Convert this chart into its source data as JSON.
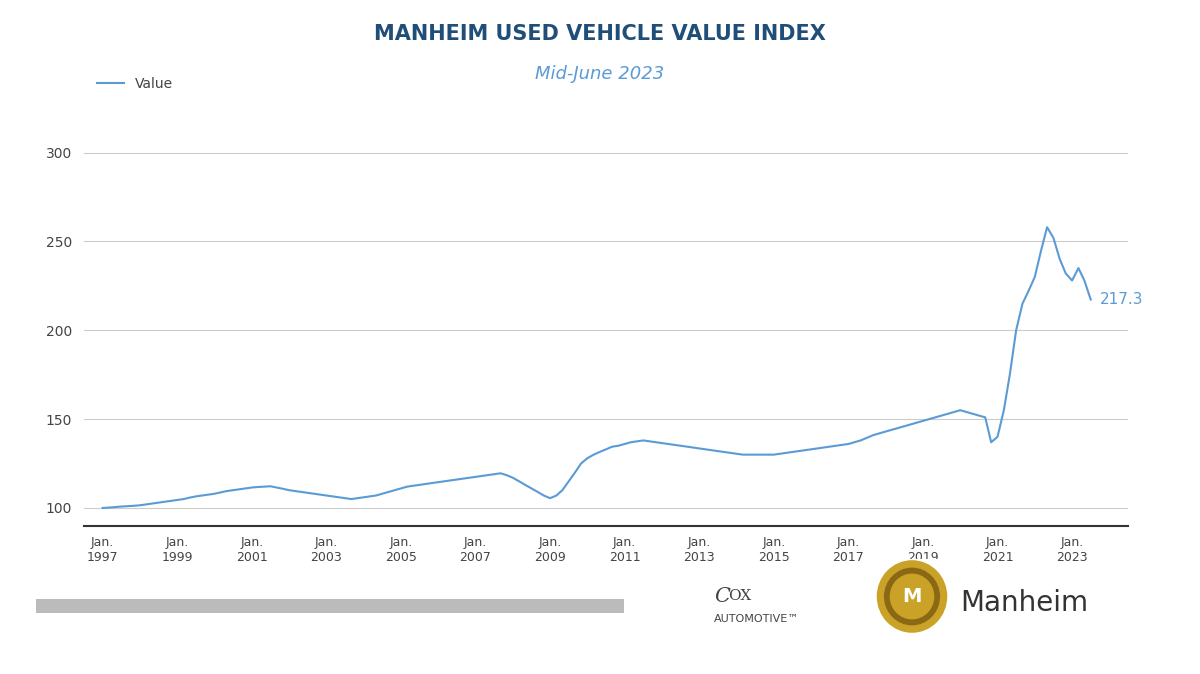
{
  "title": "MANHEIM USED VEHICLE VALUE INDEX",
  "subtitle": "Mid-June 2023",
  "line_color": "#5B9BD5",
  "background_color": "#FFFFFF",
  "end_label": "217.3",
  "end_label_color": "#5B9BD5",
  "legend_label": "Value",
  "ylim": [
    90,
    310
  ],
  "yticks": [
    100,
    150,
    200,
    250,
    300
  ],
  "title_color": "#1F4E79",
  "subtitle_color": "#5B9BD5",
  "data": [
    [
      1997.0,
      100.0
    ],
    [
      1997.17,
      100.2
    ],
    [
      1997.33,
      100.5
    ],
    [
      1997.5,
      100.8
    ],
    [
      1997.67,
      101.0
    ],
    [
      1997.83,
      101.2
    ],
    [
      1998.0,
      101.5
    ],
    [
      1998.17,
      102.0
    ],
    [
      1998.33,
      102.5
    ],
    [
      1998.5,
      103.0
    ],
    [
      1998.67,
      103.5
    ],
    [
      1998.83,
      104.0
    ],
    [
      1999.0,
      104.5
    ],
    [
      1999.17,
      105.0
    ],
    [
      1999.33,
      105.8
    ],
    [
      1999.5,
      106.5
    ],
    [
      1999.67,
      107.0
    ],
    [
      1999.83,
      107.5
    ],
    [
      2000.0,
      108.0
    ],
    [
      2000.17,
      108.8
    ],
    [
      2000.33,
      109.5
    ],
    [
      2000.5,
      110.0
    ],
    [
      2000.67,
      110.5
    ],
    [
      2000.83,
      111.0
    ],
    [
      2001.0,
      111.5
    ],
    [
      2001.17,
      111.8
    ],
    [
      2001.33,
      112.0
    ],
    [
      2001.5,
      112.2
    ],
    [
      2001.67,
      111.5
    ],
    [
      2001.83,
      110.8
    ],
    [
      2002.0,
      110.0
    ],
    [
      2002.17,
      109.5
    ],
    [
      2002.33,
      109.0
    ],
    [
      2002.5,
      108.5
    ],
    [
      2002.67,
      108.0
    ],
    [
      2002.83,
      107.5
    ],
    [
      2003.0,
      107.0
    ],
    [
      2003.17,
      106.5
    ],
    [
      2003.33,
      106.0
    ],
    [
      2003.5,
      105.5
    ],
    [
      2003.67,
      105.0
    ],
    [
      2003.83,
      105.5
    ],
    [
      2004.0,
      106.0
    ],
    [
      2004.17,
      106.5
    ],
    [
      2004.33,
      107.0
    ],
    [
      2004.5,
      108.0
    ],
    [
      2004.67,
      109.0
    ],
    [
      2004.83,
      110.0
    ],
    [
      2005.0,
      111.0
    ],
    [
      2005.17,
      112.0
    ],
    [
      2005.33,
      112.5
    ],
    [
      2005.5,
      113.0
    ],
    [
      2005.67,
      113.5
    ],
    [
      2005.83,
      114.0
    ],
    [
      2006.0,
      114.5
    ],
    [
      2006.17,
      115.0
    ],
    [
      2006.33,
      115.5
    ],
    [
      2006.5,
      116.0
    ],
    [
      2006.67,
      116.5
    ],
    [
      2006.83,
      117.0
    ],
    [
      2007.0,
      117.5
    ],
    [
      2007.17,
      118.0
    ],
    [
      2007.33,
      118.5
    ],
    [
      2007.5,
      119.0
    ],
    [
      2007.67,
      119.5
    ],
    [
      2007.83,
      118.5
    ],
    [
      2008.0,
      117.0
    ],
    [
      2008.17,
      115.0
    ],
    [
      2008.33,
      113.0
    ],
    [
      2008.5,
      111.0
    ],
    [
      2008.67,
      109.0
    ],
    [
      2008.83,
      107.0
    ],
    [
      2009.0,
      105.5
    ],
    [
      2009.17,
      107.0
    ],
    [
      2009.33,
      110.0
    ],
    [
      2009.5,
      115.0
    ],
    [
      2009.67,
      120.0
    ],
    [
      2009.83,
      125.0
    ],
    [
      2010.0,
      128.0
    ],
    [
      2010.17,
      130.0
    ],
    [
      2010.33,
      131.5
    ],
    [
      2010.5,
      133.0
    ],
    [
      2010.67,
      134.5
    ],
    [
      2010.83,
      135.0
    ],
    [
      2011.0,
      136.0
    ],
    [
      2011.17,
      137.0
    ],
    [
      2011.33,
      137.5
    ],
    [
      2011.5,
      138.0
    ],
    [
      2011.67,
      137.5
    ],
    [
      2011.83,
      137.0
    ],
    [
      2012.0,
      136.5
    ],
    [
      2012.17,
      136.0
    ],
    [
      2012.33,
      135.5
    ],
    [
      2012.5,
      135.0
    ],
    [
      2012.67,
      134.5
    ],
    [
      2012.83,
      134.0
    ],
    [
      2013.0,
      133.5
    ],
    [
      2013.17,
      133.0
    ],
    [
      2013.33,
      132.5
    ],
    [
      2013.5,
      132.0
    ],
    [
      2013.67,
      131.5
    ],
    [
      2013.83,
      131.0
    ],
    [
      2014.0,
      130.5
    ],
    [
      2014.17,
      130.0
    ],
    [
      2014.33,
      130.0
    ],
    [
      2014.5,
      130.0
    ],
    [
      2014.67,
      130.0
    ],
    [
      2014.83,
      130.0
    ],
    [
      2015.0,
      130.0
    ],
    [
      2015.17,
      130.5
    ],
    [
      2015.33,
      131.0
    ],
    [
      2015.5,
      131.5
    ],
    [
      2015.67,
      132.0
    ],
    [
      2015.83,
      132.5
    ],
    [
      2016.0,
      133.0
    ],
    [
      2016.17,
      133.5
    ],
    [
      2016.33,
      134.0
    ],
    [
      2016.5,
      134.5
    ],
    [
      2016.67,
      135.0
    ],
    [
      2016.83,
      135.5
    ],
    [
      2017.0,
      136.0
    ],
    [
      2017.17,
      137.0
    ],
    [
      2017.33,
      138.0
    ],
    [
      2017.5,
      139.5
    ],
    [
      2017.67,
      141.0
    ],
    [
      2017.83,
      142.0
    ],
    [
      2018.0,
      143.0
    ],
    [
      2018.17,
      144.0
    ],
    [
      2018.33,
      145.0
    ],
    [
      2018.5,
      146.0
    ],
    [
      2018.67,
      147.0
    ],
    [
      2018.83,
      148.0
    ],
    [
      2019.0,
      149.0
    ],
    [
      2019.17,
      150.0
    ],
    [
      2019.33,
      151.0
    ],
    [
      2019.5,
      152.0
    ],
    [
      2019.67,
      153.0
    ],
    [
      2019.83,
      154.0
    ],
    [
      2020.0,
      155.0
    ],
    [
      2020.17,
      154.0
    ],
    [
      2020.33,
      153.0
    ],
    [
      2020.5,
      152.0
    ],
    [
      2020.67,
      151.0
    ],
    [
      2020.83,
      137.0
    ],
    [
      2021.0,
      140.0
    ],
    [
      2021.17,
      155.0
    ],
    [
      2021.33,
      175.0
    ],
    [
      2021.5,
      200.0
    ],
    [
      2021.67,
      215.0
    ],
    [
      2021.83,
      222.0
    ],
    [
      2022.0,
      230.0
    ],
    [
      2022.17,
      245.0
    ],
    [
      2022.33,
      258.0
    ],
    [
      2022.5,
      252.0
    ],
    [
      2022.67,
      240.0
    ],
    [
      2022.83,
      232.0
    ],
    [
      2023.0,
      228.0
    ],
    [
      2023.17,
      235.0
    ],
    [
      2023.33,
      228.0
    ],
    [
      2023.5,
      217.3
    ]
  ],
  "xtick_positions": [
    1997,
    1999,
    2001,
    2003,
    2005,
    2007,
    2009,
    2011,
    2013,
    2015,
    2017,
    2019,
    2021,
    2023
  ],
  "xtick_labels": [
    "Jan.\n1997",
    "Jan.\n1999",
    "Jan.\n2001",
    "Jan.\n2003",
    "Jan.\n2005",
    "Jan.\n2007",
    "Jan.\n2009",
    "Jan.\n2011",
    "Jan.\n2013",
    "Jan.\n2015",
    "Jan.\n2017",
    "Jan.\n2019",
    "Jan.\n2021",
    "Jan.\n2023"
  ],
  "gray_bar_color": "#BBBBBB",
  "cox_text_color": "#444444",
  "manheim_text_color": "#333333"
}
